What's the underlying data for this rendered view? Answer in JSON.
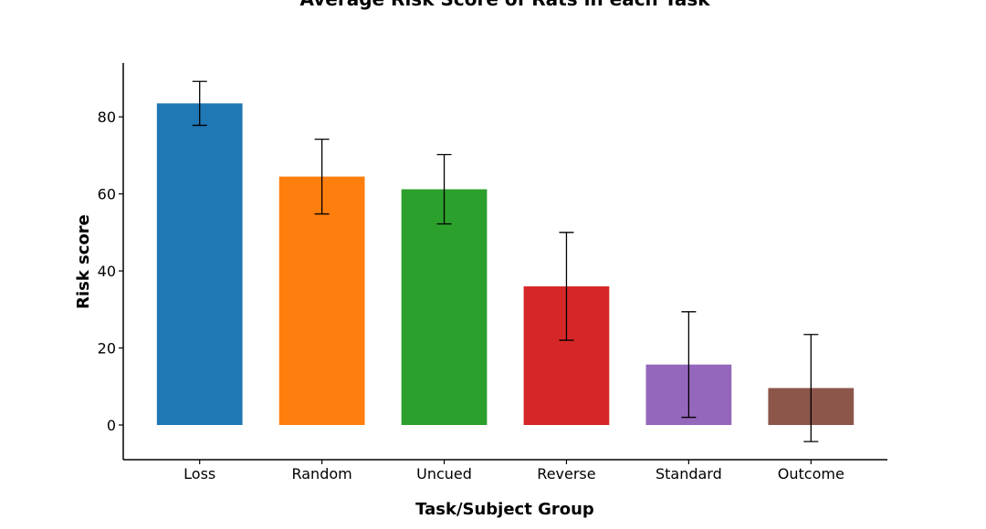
{
  "chart_data": {
    "type": "bar",
    "title": "Average Risk Score of Rats in each Task",
    "xlabel": "Task/Subject Group",
    "ylabel": "Risk score",
    "categories": [
      "Loss",
      "Random",
      "Uncued",
      "Reverse",
      "Standard",
      "Outcome"
    ],
    "values": [
      83.5,
      64.5,
      61.2,
      36.0,
      15.7,
      9.6
    ],
    "error": [
      5.7,
      9.7,
      9.0,
      14.0,
      13.7,
      13.9
    ],
    "colors": [
      "#1f77b4",
      "#ff7f0e",
      "#2ca02c",
      "#d62728",
      "#9467bd",
      "#8c564b"
    ],
    "ylim": [
      -9,
      94
    ],
    "yticks": [
      0,
      20,
      40,
      60,
      80
    ],
    "grid": false,
    "legend": "none"
  }
}
